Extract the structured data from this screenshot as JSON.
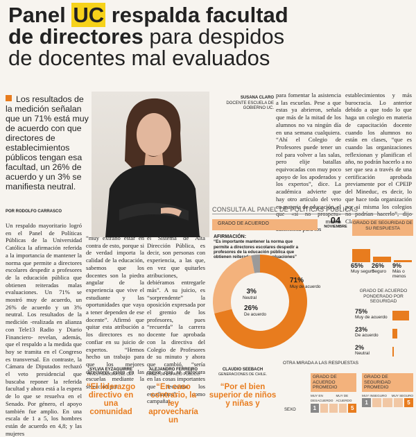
{
  "headline": {
    "part1": "Panel ",
    "highlight": "UC",
    "part2": " respalda facultad",
    "line2_bold": "de directores",
    "line2_light": " para despidos",
    "line3": "de docentes mal evaluados"
  },
  "lead": "Los resultados de la medición señalan que un 71% está muy de acuerdo con que directores de establecimientos públicos tengan esa facultad, un 26% de acuerdo y un 3% se manifiesta neutral.",
  "byline": "POR RODOLFO CARRASCO",
  "photo_caption": {
    "name": "SUSANA CLARO",
    "role": "DOCENTE ESCUELA DE GOBIERNO UC."
  },
  "body": {
    "col1": "Un respaldo mayoritario logró en el Panel de Políticas Públicas de la Universidad Católica la afirmación referida a la importancia de mantener la norma que permite a directores escolares despedir a profesores de la educación pública que obtienen reiteradas malas evaluaciones. Un 71% se mostró muy de acuerdo, un 26% de acuerdo y un 3% neutral. Los resultados de la medición -realizada en alianza con Tele13 Radio y Diario Financiero- revelan, además, que el respaldo a la medida que hoy se tramita en el Congreso es transversal. En contraste, la Cámara de Diputados rechazó el veto presidencial que buscaba reponer la referida facultad y ahora está a la espera de lo que se resuelva en el Senado. Por género, el apoyo también fue amplio. En una escala de 1 a 5, los hombres están de acuerdo en 4,8; y las mujeres",
    "col2": "“muy extraño estar en contra de esto, porque si de verdad importa la calidad de la educación, sabemos que los docentes son la piedra angular de la experiencia que vive el estudiante y las oportunidades que vaya a tener dependen de ese docente”. Afirmó que quitar esta atribución a los directores es no confiar en su juicio de expertos. “Hemos hecho un trabajo para que los mejores directores estén en las escuelas mediante la selección por",
    "col3": "el Sistema de Alta Dirección Pública, es decir, son personas con experiencia, a las que, en vez que quitarles atribuciones, debiéramos entregarle más”. A su juicio, es “sorprendente” la oposición expresada por el gremio de los profesores, pues “recuerda” la carrera docente fue aprobada con la directiva del Colegio de Profesores de su minuto y ahora que cambió, “sería mejor que se enfocara en las cosas importantes que necesitan los estudiantes”, como campañas",
    "col4": "para fomentar la asistencia a las escuelas. Pese a que estas ya abrieron, señala que más de la mitad de los alumnos no va ningún día en una semana cualquiera. “Ahí el Colegio de Profesores puede tener un rol para volver a las salas, pero elije batallas equivocadas con muy poco apoyo de los apoderados y los expertos”, dice. La académica advierte que hay otro artículo del veto en materia de educación, el que «si no prospera» implicará menos autonomía para los",
    "col5": "establecimientos y más burocracia. Lo anterior debido a que todo lo que haga un colegio en materia de capacitación docente cuando los alumnos no están en clases, “que es cuando las organizaciones reflexionan y planifican el año, no podrán hacerlo a no ser que sea a través de una certificación aprobada previamente por el CPEIP del Mineduc, es decir, lo que hace toda organización por sí misma los colegios no podrían hacerlo”, dijo Claro."
  },
  "panel": {
    "title": "CONSULTA AL PANEL DE POLÍTICAS PÚBLICAS",
    "grado_label": "GRADO DE ACUERDO",
    "date_day": "04",
    "date_month": "NOVIEMBRE",
    "afirmacion_label": "AFIRMACIÓN:",
    "afirmacion_text": "“Es importante mantener la norma que permite a directores escolares despedir a profesores de la educación pública que obtienen reiteradas malas evaluaciones”"
  },
  "chart_data": [
    {
      "type": "pie",
      "categories": [
        "Muy de acuerdo",
        "De acuerdo",
        "Neutral"
      ],
      "values": [
        71,
        26,
        3
      ],
      "labels": [
        "71%",
        "26%",
        "3%"
      ]
    },
    {
      "type": "bar",
      "title": "GRADO DE SEGURIDAD DE SU RESPUESTA",
      "categories": [
        "Muy seguro",
        "Seguro",
        "Más o menos"
      ],
      "values": [
        65,
        26,
        9
      ],
      "labels": [
        "65%",
        "26%",
        "9%"
      ]
    },
    {
      "type": "bar",
      "title": "GRADO DE ACUERDO PONDERADO POR SEGURIDAD",
      "categories": [
        "Muy de acuerdo",
        "De acuerdo",
        "Neutral"
      ],
      "values": [
        75,
        23,
        2
      ],
      "labels": [
        "75%",
        "23%",
        "2%"
      ]
    }
  ],
  "colors": {
    "accent": "#e87c1e",
    "light": "#f3b27c",
    "gray": "#9a9a9a"
  },
  "otra_mirada": "OTRA MIRADA A LAS RESPUESTAS",
  "promedio_boxes": [
    {
      "title": "GRADO DE ACUERDO PROMEDIO",
      "low": "MUY EN DESACUERDO",
      "high": "MUY DE ACUERDO",
      "scale": [
        "1",
        "",
        "",
        "",
        "5"
      ]
    },
    {
      "title": "GRADO DE SEGURIDAD PROMEDIO",
      "low": "MUY INSEGURO",
      "high": "MUY SEGURO",
      "scale": [
        "1",
        "",
        "",
        "",
        "5"
      ]
    }
  ],
  "sexo_label": "SEXO",
  "panelists": [
    {
      "name": "SYLVIA EYZAGUIRRE",
      "role": "INVESTIGADORA DEL CEP.",
      "quote": "“El liderazgo directivo en una comunidad"
    },
    {
      "name": "ALEJANDRO FERREIRO",
      "role": "DIRECTOR ESPACIO PÚBLICO.",
      "quote": "“En caso contrario, la ley aprovecharía un"
    },
    {
      "name": "CLAUDIO SEEBACH",
      "role": "GENERACIONES DE CHILE.",
      "quote": "“Por el bien superior de niños y niñas y"
    }
  ]
}
